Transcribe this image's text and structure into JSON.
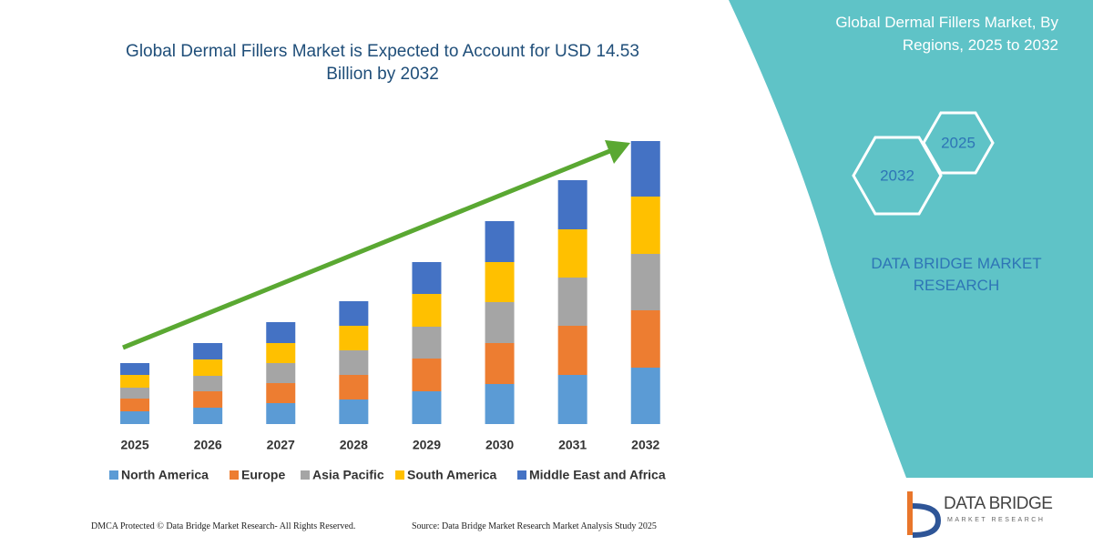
{
  "chart_data": {
    "type": "bar",
    "stacked": true,
    "title": "Global Dermal Fillers Market is Expected to Account for USD 14.53 Billion by 2032",
    "categories": [
      "2025",
      "2026",
      "2027",
      "2028",
      "2029",
      "2030",
      "2031",
      "2032"
    ],
    "series": [
      {
        "name": "North America",
        "color": "#5b9bd5",
        "values": [
          14,
          18,
          23,
          27,
          36,
          44,
          54,
          62
        ]
      },
      {
        "name": "Europe",
        "color": "#ed7d31",
        "values": [
          14,
          18,
          22,
          27,
          36,
          45,
          54,
          63
        ]
      },
      {
        "name": "Asia Pacific",
        "color": "#a5a5a5",
        "values": [
          12,
          17,
          22,
          27,
          35,
          45,
          53,
          62
        ]
      },
      {
        "name": "South America",
        "color": "#ffc000",
        "values": [
          14,
          18,
          22,
          27,
          36,
          44,
          53,
          63
        ]
      },
      {
        "name": "Middle East and Africa",
        "color": "#4472c4",
        "values": [
          13,
          18,
          23,
          27,
          35,
          45,
          54,
          61
        ]
      }
    ]
  },
  "side_panel": {
    "title": "Global Dermal Fillers Market, By Regions, 2025 to 2032",
    "hexagons": [
      "2032",
      "2025"
    ],
    "brand": "DATA BRIDGE MARKET RESEARCH"
  },
  "footer": {
    "copyright": "DMCA Protected © Data Bridge Market Research-  All Rights Reserved.",
    "source": "Source: Data Bridge Market Research  Market Analysis Study 2025"
  },
  "logo": {
    "name": "DATA BRIDGE",
    "tagline": "MARKET RESEARCH"
  }
}
